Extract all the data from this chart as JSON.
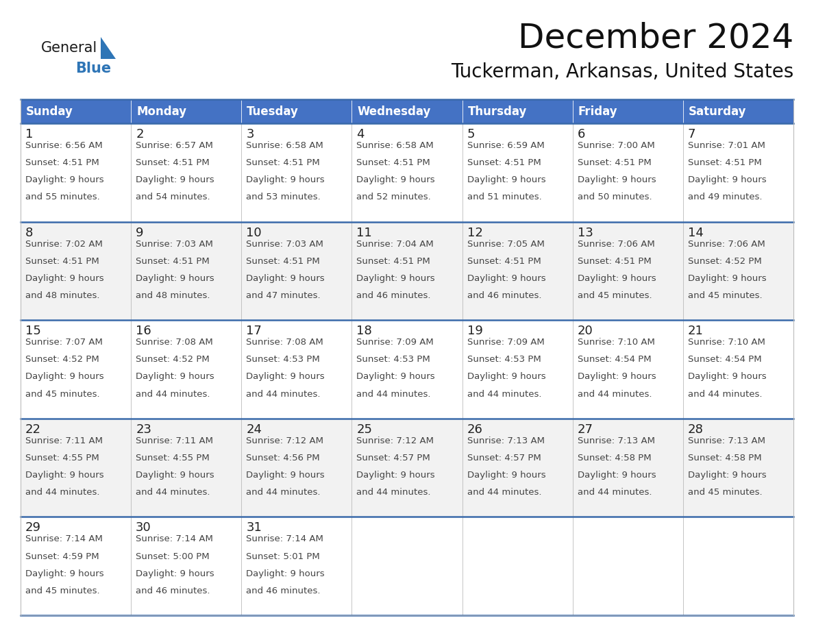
{
  "title": "December 2024",
  "subtitle": "Tuckerman, Arkansas, United States",
  "days_of_week": [
    "Sunday",
    "Monday",
    "Tuesday",
    "Wednesday",
    "Thursday",
    "Friday",
    "Saturday"
  ],
  "header_bg": "#4472C4",
  "header_text": "#FFFFFF",
  "row_bg": "#FFFFFF",
  "row_bg_alt": "#F2F2F2",
  "cell_text_color": "#444444",
  "day_num_color": "#222222",
  "border_color": "#3A6AAA",
  "separator_color": "#BBBBBB",
  "calendar_data": [
    [
      {
        "day": 1,
        "sunrise": "6:56 AM",
        "sunset": "4:51 PM",
        "daylight": "9 hours and 55 minutes."
      },
      {
        "day": 2,
        "sunrise": "6:57 AM",
        "sunset": "4:51 PM",
        "daylight": "9 hours and 54 minutes."
      },
      {
        "day": 3,
        "sunrise": "6:58 AM",
        "sunset": "4:51 PM",
        "daylight": "9 hours and 53 minutes."
      },
      {
        "day": 4,
        "sunrise": "6:58 AM",
        "sunset": "4:51 PM",
        "daylight": "9 hours and 52 minutes."
      },
      {
        "day": 5,
        "sunrise": "6:59 AM",
        "sunset": "4:51 PM",
        "daylight": "9 hours and 51 minutes."
      },
      {
        "day": 6,
        "sunrise": "7:00 AM",
        "sunset": "4:51 PM",
        "daylight": "9 hours and 50 minutes."
      },
      {
        "day": 7,
        "sunrise": "7:01 AM",
        "sunset": "4:51 PM",
        "daylight": "9 hours and 49 minutes."
      }
    ],
    [
      {
        "day": 8,
        "sunrise": "7:02 AM",
        "sunset": "4:51 PM",
        "daylight": "9 hours and 48 minutes."
      },
      {
        "day": 9,
        "sunrise": "7:03 AM",
        "sunset": "4:51 PM",
        "daylight": "9 hours and 48 minutes."
      },
      {
        "day": 10,
        "sunrise": "7:03 AM",
        "sunset": "4:51 PM",
        "daylight": "9 hours and 47 minutes."
      },
      {
        "day": 11,
        "sunrise": "7:04 AM",
        "sunset": "4:51 PM",
        "daylight": "9 hours and 46 minutes."
      },
      {
        "day": 12,
        "sunrise": "7:05 AM",
        "sunset": "4:51 PM",
        "daylight": "9 hours and 46 minutes."
      },
      {
        "day": 13,
        "sunrise": "7:06 AM",
        "sunset": "4:51 PM",
        "daylight": "9 hours and 45 minutes."
      },
      {
        "day": 14,
        "sunrise": "7:06 AM",
        "sunset": "4:52 PM",
        "daylight": "9 hours and 45 minutes."
      }
    ],
    [
      {
        "day": 15,
        "sunrise": "7:07 AM",
        "sunset": "4:52 PM",
        "daylight": "9 hours and 45 minutes."
      },
      {
        "day": 16,
        "sunrise": "7:08 AM",
        "sunset": "4:52 PM",
        "daylight": "9 hours and 44 minutes."
      },
      {
        "day": 17,
        "sunrise": "7:08 AM",
        "sunset": "4:53 PM",
        "daylight": "9 hours and 44 minutes."
      },
      {
        "day": 18,
        "sunrise": "7:09 AM",
        "sunset": "4:53 PM",
        "daylight": "9 hours and 44 minutes."
      },
      {
        "day": 19,
        "sunrise": "7:09 AM",
        "sunset": "4:53 PM",
        "daylight": "9 hours and 44 minutes."
      },
      {
        "day": 20,
        "sunrise": "7:10 AM",
        "sunset": "4:54 PM",
        "daylight": "9 hours and 44 minutes."
      },
      {
        "day": 21,
        "sunrise": "7:10 AM",
        "sunset": "4:54 PM",
        "daylight": "9 hours and 44 minutes."
      }
    ],
    [
      {
        "day": 22,
        "sunrise": "7:11 AM",
        "sunset": "4:55 PM",
        "daylight": "9 hours and 44 minutes."
      },
      {
        "day": 23,
        "sunrise": "7:11 AM",
        "sunset": "4:55 PM",
        "daylight": "9 hours and 44 minutes."
      },
      {
        "day": 24,
        "sunrise": "7:12 AM",
        "sunset": "4:56 PM",
        "daylight": "9 hours and 44 minutes."
      },
      {
        "day": 25,
        "sunrise": "7:12 AM",
        "sunset": "4:57 PM",
        "daylight": "9 hours and 44 minutes."
      },
      {
        "day": 26,
        "sunrise": "7:13 AM",
        "sunset": "4:57 PM",
        "daylight": "9 hours and 44 minutes."
      },
      {
        "day": 27,
        "sunrise": "7:13 AM",
        "sunset": "4:58 PM",
        "daylight": "9 hours and 44 minutes."
      },
      {
        "day": 28,
        "sunrise": "7:13 AM",
        "sunset": "4:58 PM",
        "daylight": "9 hours and 45 minutes."
      }
    ],
    [
      {
        "day": 29,
        "sunrise": "7:14 AM",
        "sunset": "4:59 PM",
        "daylight": "9 hours and 45 minutes."
      },
      {
        "day": 30,
        "sunrise": "7:14 AM",
        "sunset": "5:00 PM",
        "daylight": "9 hours and 46 minutes."
      },
      {
        "day": 31,
        "sunrise": "7:14 AM",
        "sunset": "5:01 PM",
        "daylight": "9 hours and 46 minutes."
      },
      null,
      null,
      null,
      null
    ]
  ],
  "logo_triangle_color": "#2E75B6",
  "title_fontsize": 36,
  "subtitle_fontsize": 20,
  "header_fontsize": 12,
  "day_num_fontsize": 13,
  "cell_fontsize": 9.5,
  "fig_bg": "#FFFFFF",
  "fig_width": 11.88,
  "fig_height": 9.18,
  "dpi": 100
}
